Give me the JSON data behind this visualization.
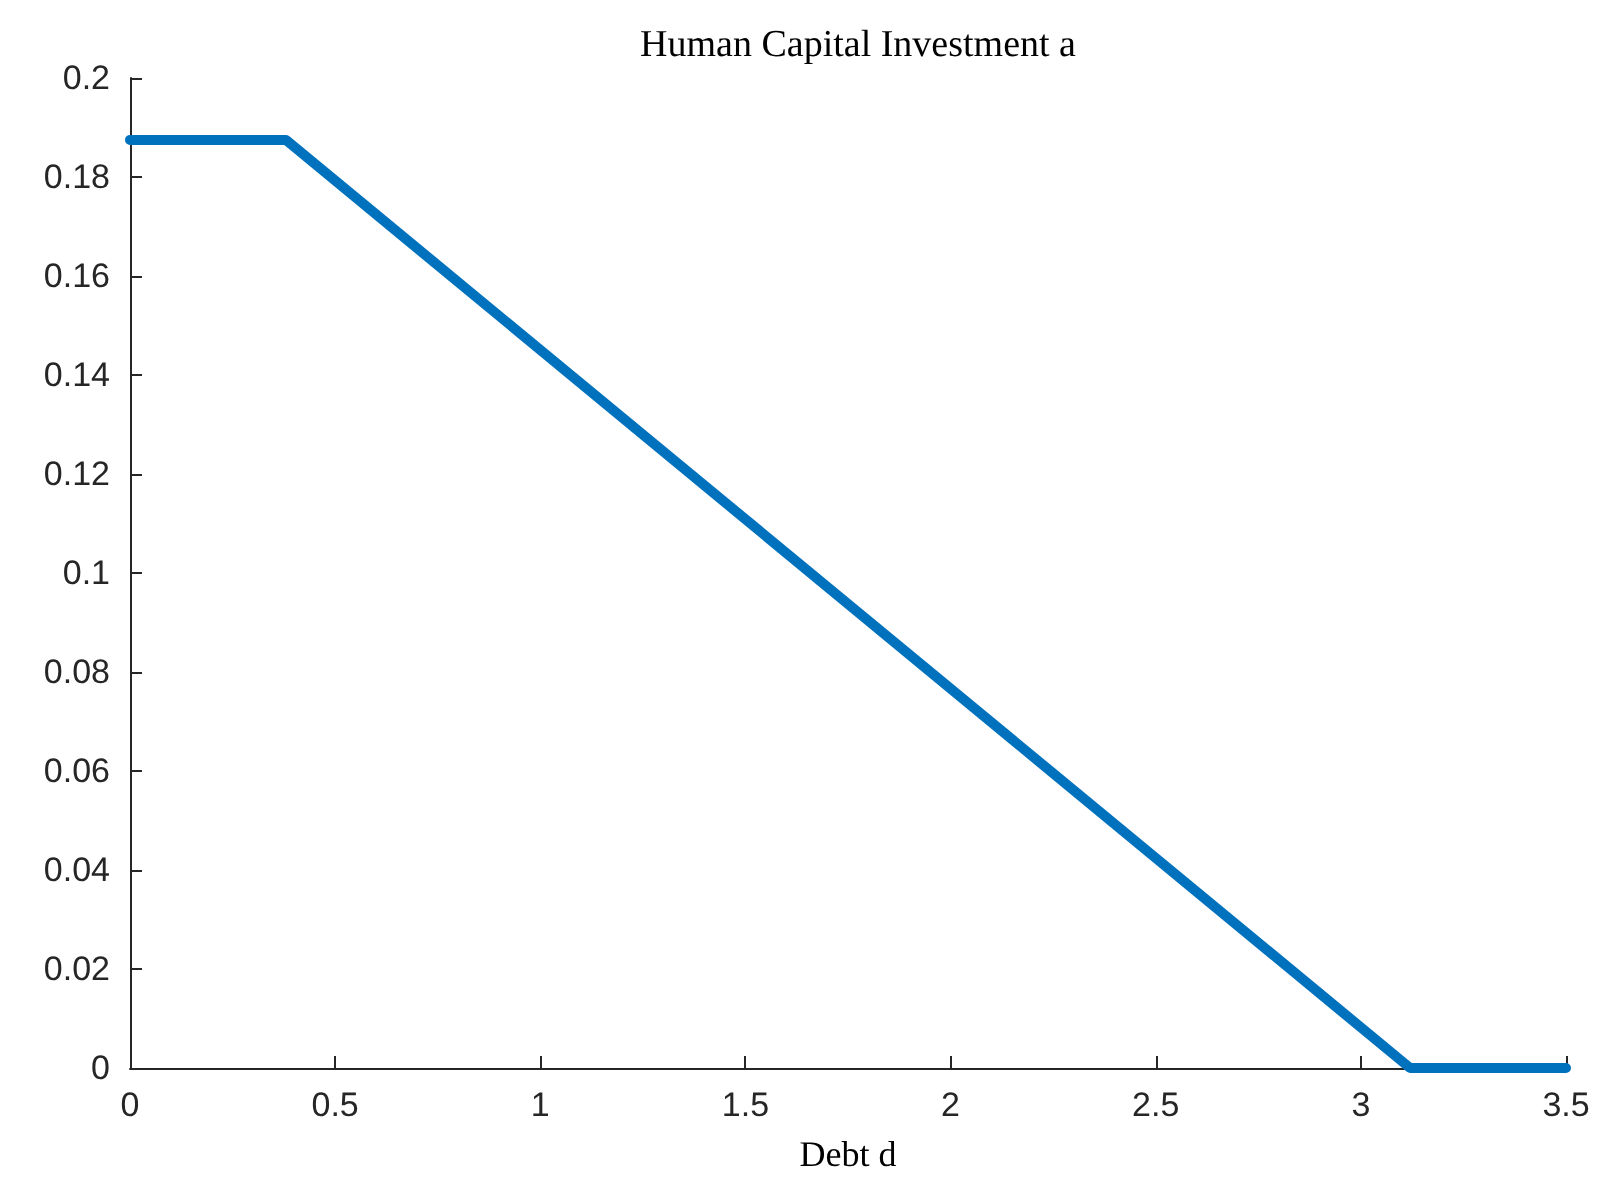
{
  "chart_data": {
    "type": "line",
    "title": "Human Capital Investment a",
    "xlabel": "Debt d",
    "x": [
      0,
      0.38,
      3.12,
      3.5
    ],
    "series": [
      {
        "color": "#0072bd",
        "values": [
          0.1875,
          0.1875,
          0,
          0
        ]
      }
    ],
    "xlim": [
      0,
      3.5
    ],
    "xticks": [
      0,
      0.5,
      1,
      1.5,
      2,
      2.5,
      3,
      3.5
    ],
    "ylim": [
      0,
      0.2
    ],
    "yticks": [
      0,
      0.02,
      0.04,
      0.06,
      0.08,
      0.1,
      0.12,
      0.14,
      0.16,
      0.18,
      0.2
    ],
    "grid": false,
    "marker": "none",
    "line_style": "solid"
  }
}
